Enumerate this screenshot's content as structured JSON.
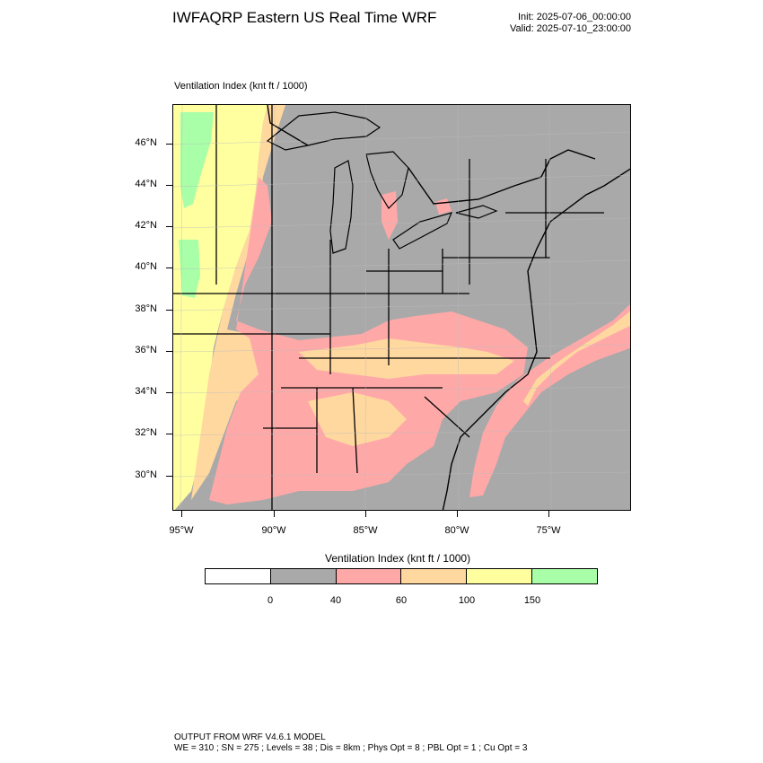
{
  "header": {
    "title": "IWFAQRP Eastern US Real Time WRF",
    "init": "Init: 2025-07-06_00:00:00",
    "valid": "Valid: 2025-07-10_23:00:00"
  },
  "map": {
    "field_label": "Ventilation Index   (knt ft / 1000)",
    "lat_labels": [
      "46°N",
      "44°N",
      "42°N",
      "40°N",
      "38°N",
      "36°N",
      "34°N",
      "32°N",
      "30°N"
    ],
    "lon_labels": [
      "95°W",
      "90°W",
      "85°W",
      "80°W",
      "75°W"
    ],
    "colors": {
      "below_0": "#ffffff",
      "0_40": "#a9a9a9",
      "40_60": "#ffa8a8",
      "60_100": "#ffd8a0",
      "100_150": "#ffffa0",
      "above_150": "#a8ffa8",
      "ocean": "#a9a9a9",
      "borders": "#000000"
    }
  },
  "colorbar": {
    "title": "Ventilation Index  (knt ft / 1000)",
    "tick_labels": [
      "0",
      "40",
      "60",
      "100",
      "150"
    ],
    "swatch_colors": [
      "#ffffff",
      "#a9a9a9",
      "#ffa8a8",
      "#ffd8a0",
      "#ffffa0",
      "#a8ffa8"
    ]
  },
  "footer": {
    "line1": "OUTPUT FROM WRF V4.6.1 MODEL",
    "line2": "WE = 310 ; SN = 275 ; Levels = 38 ; Dis = 8km ; Phys Opt = 8 ; PBL Opt = 1 ; Cu Opt = 3"
  }
}
